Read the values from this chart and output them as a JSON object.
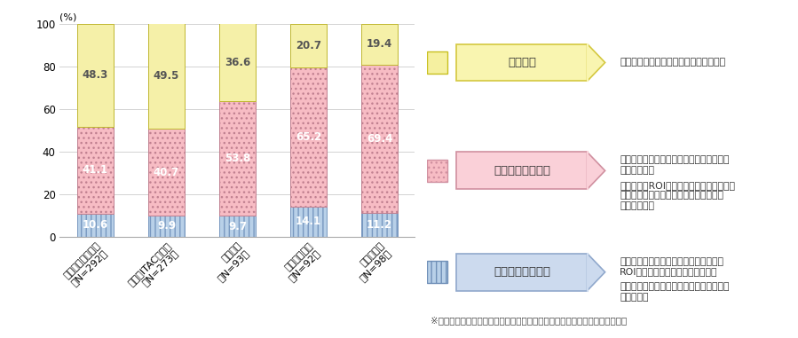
{
  "categories": [
    "日本（一般）企業\n（N=292）",
    "日本（ITAC）企業\n（N=273）",
    "米国企業\n（N=93）",
    "イギリス企業\n（N=92）",
    "ドイツ企業\n（N=98）"
  ],
  "values_bottom": [
    10.6,
    9.9,
    9.7,
    14.1,
    11.2
  ],
  "values_middle": [
    41.1,
    40.7,
    53.8,
    65.2,
    69.4
  ],
  "values_top": [
    48.3,
    49.5,
    36.6,
    20.7,
    19.4
  ],
  "color_bottom": "#b8d0e8",
  "color_middle_face": "#f7bcc4",
  "color_top": "#f5f0a8",
  "ylabel_text": "(%)",
  "ylim_max": 100,
  "yticks": [
    0,
    20,
    40,
    60,
    80,
    100
  ],
  "note": "※第４次産業革命に係る取組を行っていない・今後行う予定がない回答は除く",
  "desc_1": "・導入や対応に向けて検討を進めている",
  "desc_2_1": "・プロセスやプロダクトに係る導入や投資\nを進めている",
  "desc_2_2": "・売上高やROI等へのインパクトは小さい\nがプロセスやプロダクトの面で成果が見\nえ始めている",
  "desc_3_1": "・第４次産業革命への対応が、売上高や\nROI等にインパクトを与えている。",
  "desc_3_2": "・自社のデジタル変革等、重要な推進力と\nなっている",
  "label1": "検討段階",
  "label2": "導入～基盤化段階",
  "label3": "利活用～変革段階",
  "box1_face": "#f9f5b0",
  "box1_edge": "#d4c840",
  "box2_face": "#fad0d8",
  "box2_edge": "#d090a0",
  "box3_face": "#ccdaee",
  "box3_edge": "#90a8cc",
  "swatch1_face": "#f5f0a0",
  "swatch1_edge": "#c8c020",
  "swatch2_face": "#f7bcc4",
  "swatch2_edge": "#d090a0",
  "swatch3_face": "#b8d0e8",
  "swatch3_edge": "#7090b8"
}
